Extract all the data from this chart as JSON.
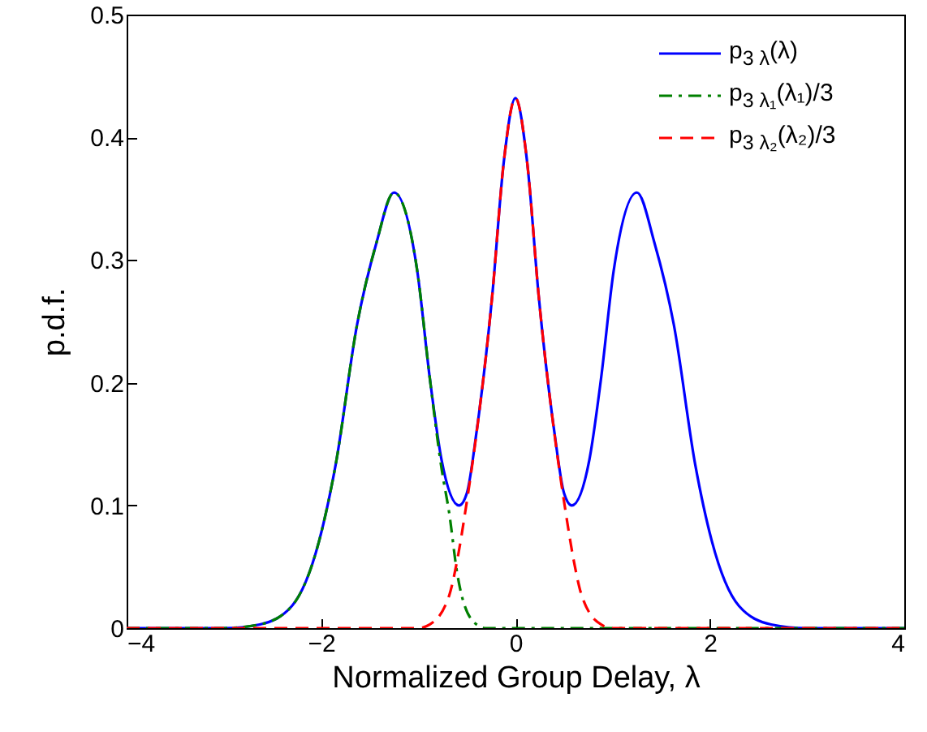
{
  "chart_data": {
    "type": "line",
    "xlabel": "Normalized Group Delay, λ",
    "ylabel": "p.d.f.",
    "xlim": [
      -4,
      4
    ],
    "xticks": [
      -4,
      -2,
      0,
      2,
      4
    ],
    "ylim": [
      0,
      0.5
    ],
    "yticks": [
      0,
      0.1,
      0.2,
      0.3,
      0.4,
      0.5
    ],
    "grid": false,
    "legend": "top right",
    "marker": "none",
    "series": [
      {
        "name": "p$_{3 λ}$(λ)",
        "color": "#0000ff",
        "line_style": "solid",
        "x": [
          -4,
          -3,
          -2.63,
          -2.3,
          -2.02,
          -1.85,
          -1.63,
          -1.43,
          -1.25,
          -1.01,
          -0.88,
          -0.76,
          -0.58,
          -0.5,
          -0.4,
          -0.24,
          -0.12,
          0,
          0.12,
          0.24,
          0.4,
          0.5,
          0.58,
          0.76,
          0.88,
          1.01,
          1.25,
          1.43,
          1.63,
          1.85,
          2.02,
          2.3,
          2.63,
          3,
          4
        ],
        "values": [
          0,
          0,
          0.003,
          0.018,
          0.071,
          0.133,
          0.247,
          0.314,
          0.355,
          0.291,
          0.203,
          0.137,
          0.1,
          0.11,
          0.16,
          0.27,
          0.38,
          0.432,
          0.38,
          0.27,
          0.16,
          0.11,
          0.1,
          0.137,
          0.203,
          0.291,
          0.355,
          0.314,
          0.247,
          0.133,
          0.071,
          0.018,
          0.003,
          0,
          0
        ]
      },
      {
        "name": "p$_{3 λ₁}$(λ₁)/3",
        "color": "#008000",
        "line_style": "dashdot",
        "x": [
          -4,
          -3,
          -2.63,
          -2.3,
          -2.02,
          -1.85,
          -1.63,
          -1.43,
          -1.25,
          -1.01,
          -0.88,
          -0.76,
          -0.68,
          -0.6,
          -0.43,
          -0.3,
          4
        ],
        "values": [
          0,
          0,
          0.003,
          0.018,
          0.071,
          0.133,
          0.247,
          0.314,
          0.355,
          0.291,
          0.203,
          0.13,
          0.093,
          0.045,
          0.005,
          0,
          0
        ]
      },
      {
        "name": "p$_{3 λ₂}$(λ₂)/3",
        "color": "#ff0000",
        "line_style": "dashed",
        "x": [
          -4,
          -1,
          -0.88,
          -0.68,
          -0.6,
          -0.51,
          -0.4,
          -0.24,
          -0.12,
          0,
          0.12,
          0.24,
          0.4,
          0.51,
          0.6,
          0.68,
          0.88,
          1,
          4
        ],
        "values": [
          0,
          0,
          0.003,
          0.027,
          0.055,
          0.098,
          0.159,
          0.27,
          0.38,
          0.432,
          0.38,
          0.27,
          0.159,
          0.098,
          0.055,
          0.027,
          0.003,
          0,
          0
        ]
      }
    ]
  }
}
